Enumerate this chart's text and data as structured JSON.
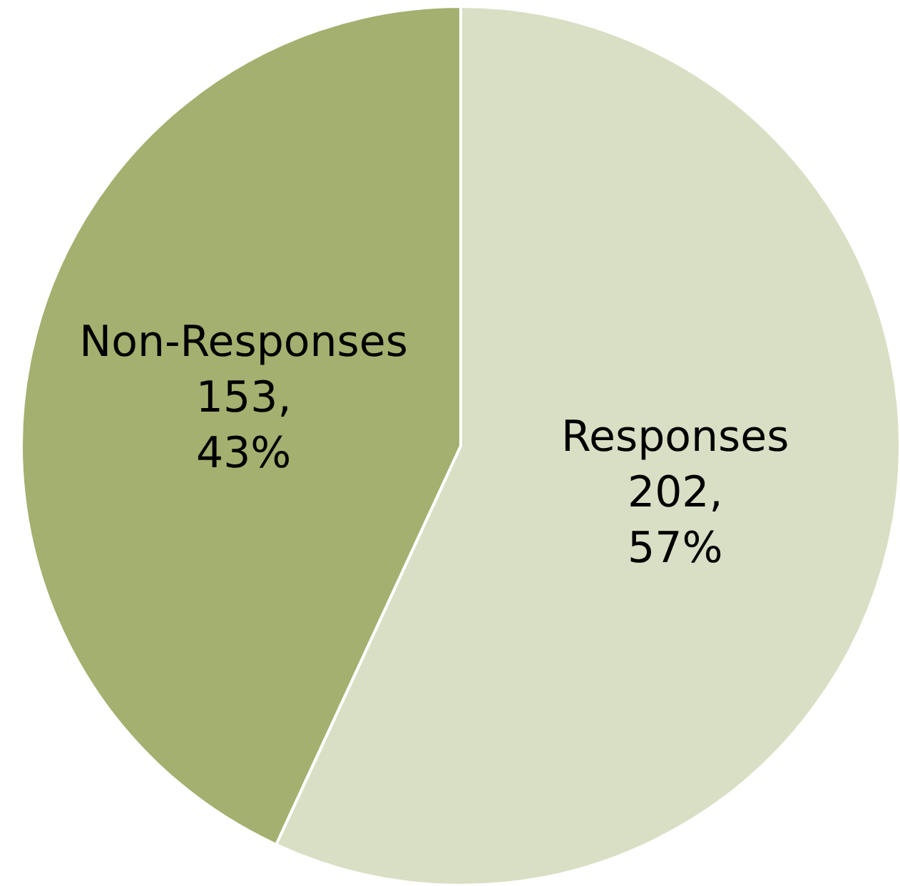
{
  "chart_data": {
    "type": "pie",
    "categories": [
      "Responses",
      "Non-Responses"
    ],
    "values": [
      202,
      153
    ],
    "colors": [
      "#d9dfc4",
      "#a3b06f"
    ],
    "value_labels": [
      "202, 57%",
      "153, 43%"
    ],
    "legend": false
  }
}
